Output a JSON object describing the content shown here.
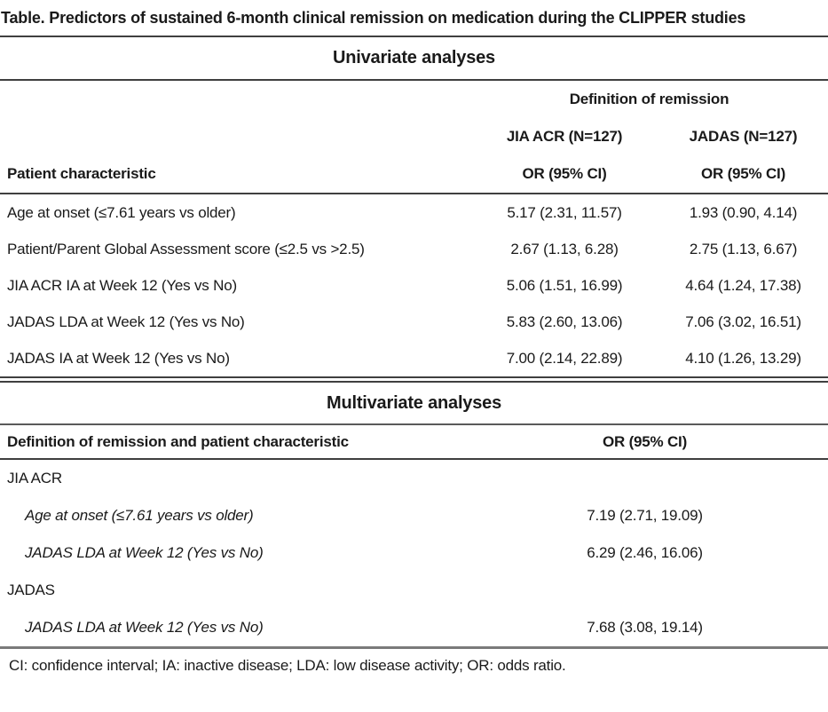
{
  "title": "Table. Predictors of sustained 6-month clinical remission on medication during the CLIPPER studies",
  "univariate": {
    "section_title": "Univariate analyses",
    "spanner": "Definition of remission",
    "col_header_left": "Patient characteristic",
    "columns": [
      {
        "group": "JIA ACR (N=127)",
        "measure": "OR (95% CI)"
      },
      {
        "group": "JADAS (N=127)",
        "measure": "OR (95% CI)"
      }
    ],
    "rows": [
      {
        "label": "Age at onset (≤7.61 years vs older)",
        "jia_acr": "5.17 (2.31, 11.57)",
        "jadas": "1.93 (0.90, 4.14)"
      },
      {
        "label": "Patient/Parent Global Assessment score (≤2.5 vs >2.5)",
        "jia_acr": "2.67 (1.13, 6.28)",
        "jadas": "2.75 (1.13, 6.67)"
      },
      {
        "label": "JIA ACR IA at Week 12 (Yes vs No)",
        "jia_acr": "5.06 (1.51, 16.99)",
        "jadas": "4.64 (1.24, 17.38)"
      },
      {
        "label": "JADAS LDA at Week 12 (Yes vs No)",
        "jia_acr": "5.83 (2.60, 13.06)",
        "jadas": "7.06 (3.02, 16.51)"
      },
      {
        "label": "JADAS IA at Week 12 (Yes vs No)",
        "jia_acr": "7.00 (2.14, 22.89)",
        "jadas": "4.10 (1.26, 13.29)"
      }
    ]
  },
  "multivariate": {
    "section_title": "Multivariate analyses",
    "col_header_left": "Definition of remission and patient characteristic",
    "col_header_value": "OR (95% CI)",
    "rows": [
      {
        "label": "JIA ACR",
        "value": ""
      },
      {
        "label": "Age at onset (≤7.61 years vs older)",
        "value": "7.19 (2.71, 19.09)"
      },
      {
        "label": "JADAS LDA at Week 12 (Yes vs No)",
        "value": "6.29 (2.46, 16.06)"
      },
      {
        "label": "JADAS",
        "value": ""
      },
      {
        "label": "JADAS LDA at Week 12 (Yes vs No)",
        "value": "7.68 (3.08, 19.14)"
      }
    ]
  },
  "footnote": "CI: confidence interval; IA: inactive disease; LDA: low disease activity; OR: odds ratio."
}
